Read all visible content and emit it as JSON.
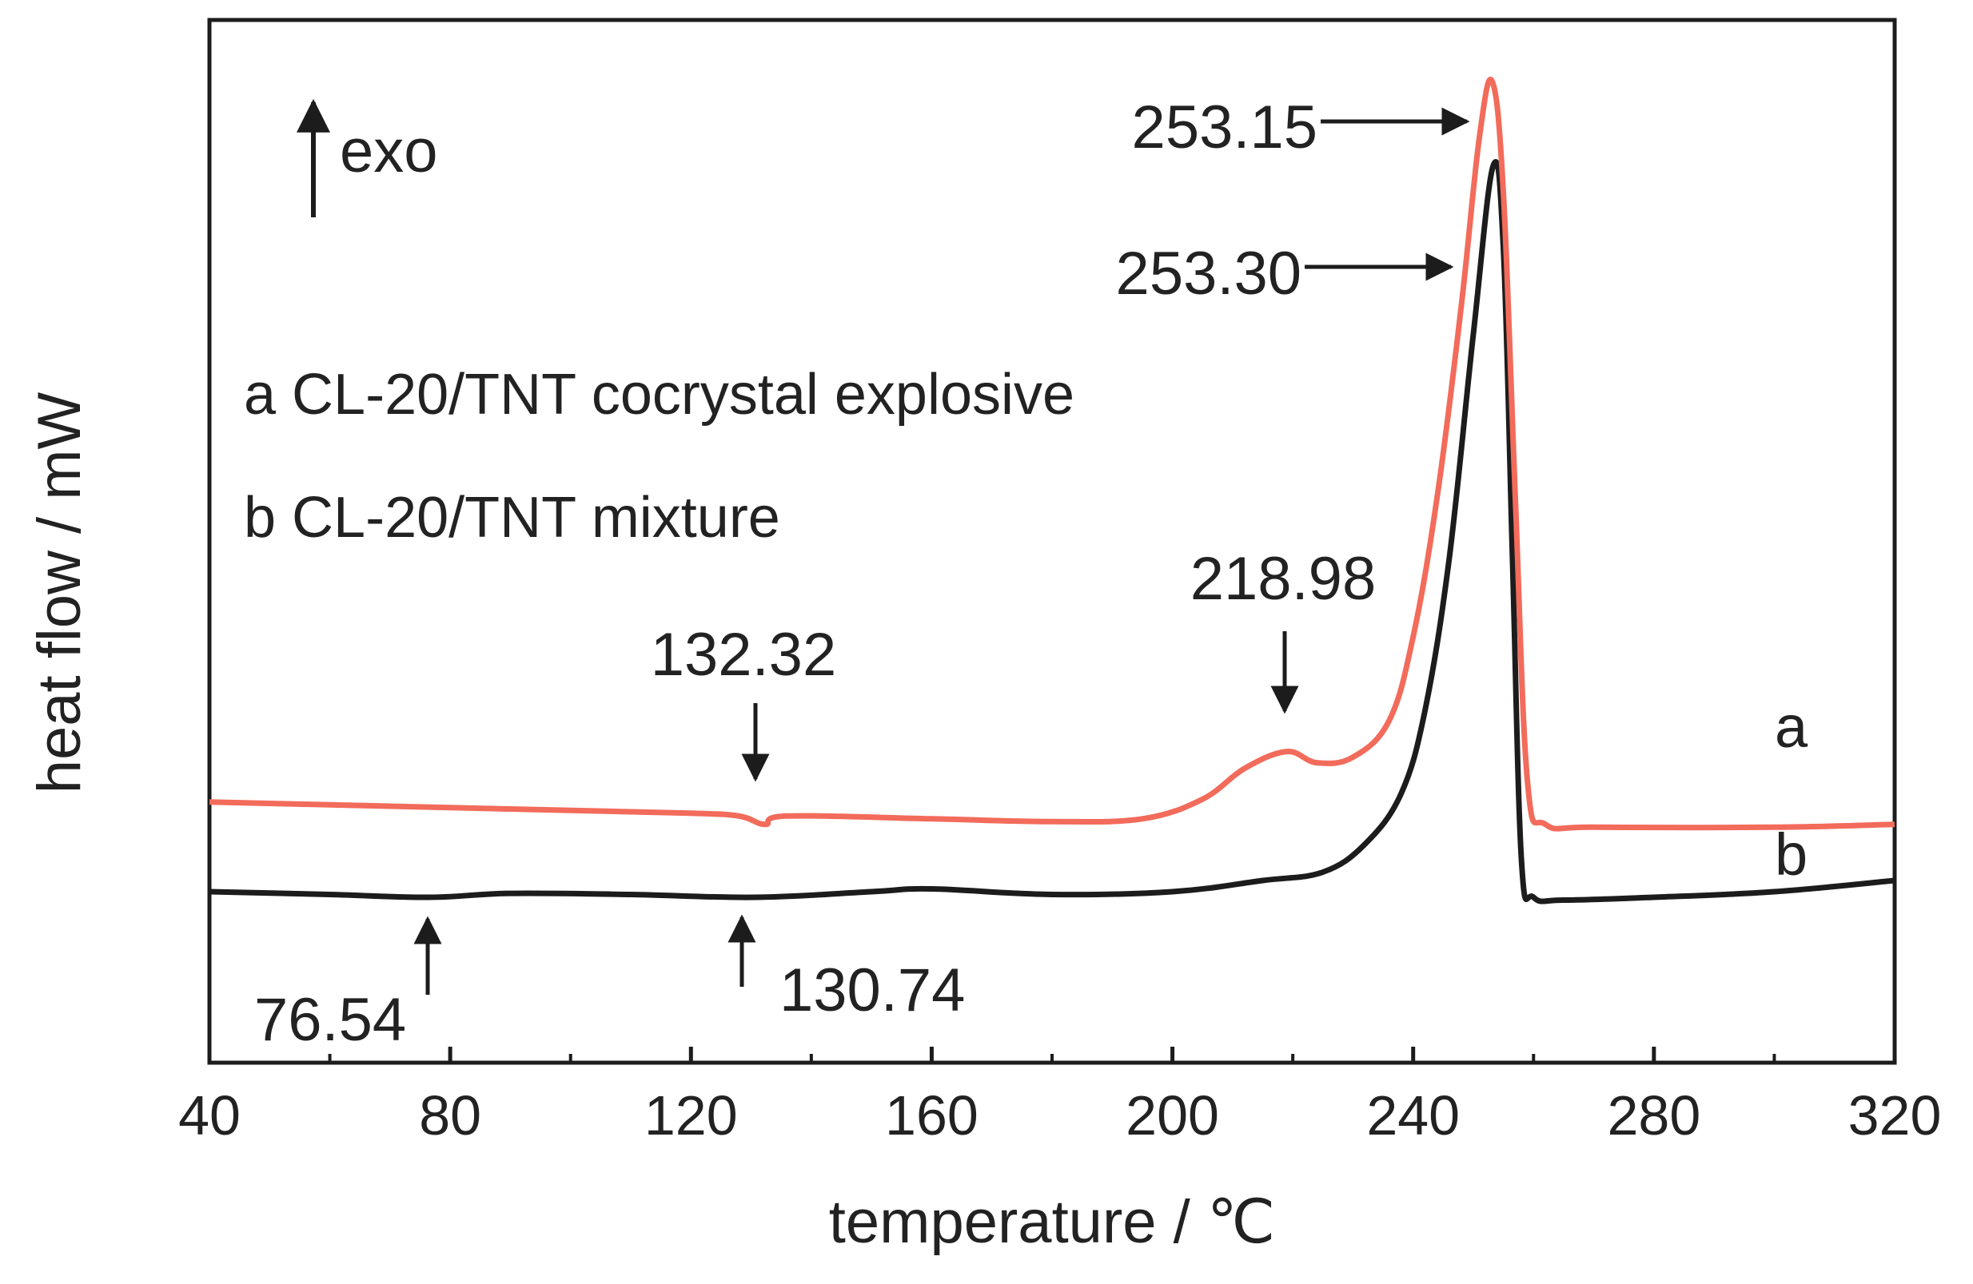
{
  "chart_data": {
    "type": "line",
    "title": "",
    "xlabel": "temperature / ℃",
    "ylabel": "heat flow / mW",
    "xlim": [
      40,
      320
    ],
    "x_ticks": [
      40,
      80,
      120,
      160,
      200,
      240,
      280,
      320
    ],
    "y_ticks_shown": false,
    "grid": false,
    "direction_indicator": "exo",
    "legend_entries": [
      "a CL-20/TNT cocrystal explosive",
      "b CL-20/TNT mixture"
    ],
    "colors": {
      "a": "#f26b5b",
      "b": "#1c1c1c"
    },
    "series": [
      {
        "name": "a",
        "x": [
          40,
          60,
          80,
          100,
          120,
          128,
          132.32,
          136,
          160,
          180,
          195,
          205,
          212,
          218.98,
          224,
          230,
          236,
          240,
          244,
          248,
          251,
          253.15,
          255,
          257,
          259,
          262,
          270,
          300,
          320
        ],
        "y": [
          4.65,
          4.6,
          4.55,
          4.5,
          4.45,
          4.4,
          4.25,
          4.4,
          4.35,
          4.3,
          4.35,
          4.7,
          5.25,
          5.55,
          5.35,
          5.45,
          6.1,
          7.6,
          10.1,
          13.5,
          16.5,
          17.5,
          15.5,
          10.0,
          5.0,
          4.25,
          4.2,
          4.2,
          4.25
        ]
      },
      {
        "name": "b",
        "x": [
          40,
          60,
          76.54,
          90,
          110,
          130.74,
          150,
          160,
          180,
          200,
          215,
          225,
          232,
          238,
          242,
          246,
          250,
          253.3,
          255,
          256.5,
          258,
          260,
          265,
          280,
          300,
          320
        ],
        "y": [
          3.05,
          3.0,
          2.95,
          3.02,
          3.0,
          2.95,
          3.05,
          3.1,
          3.0,
          3.05,
          3.25,
          3.4,
          3.9,
          4.8,
          6.3,
          9.0,
          13.0,
          16.0,
          14.5,
          9.0,
          3.6,
          2.95,
          2.9,
          2.95,
          3.05,
          3.25
        ]
      }
    ],
    "series_labels": [
      "a",
      "b"
    ],
    "annotations": [
      {
        "label": "253.15",
        "x": 253.15,
        "series": "a"
      },
      {
        "label": "253.30",
        "x": 253.3,
        "series": "b"
      },
      {
        "label": "218.98",
        "x": 218.98,
        "series": "a"
      },
      {
        "label": "132.32",
        "x": 132.32,
        "series": "a"
      },
      {
        "label": "76.54",
        "x": 76.54,
        "series": "b"
      },
      {
        "label": "130.74",
        "x": 130.74,
        "series": "b"
      }
    ]
  }
}
